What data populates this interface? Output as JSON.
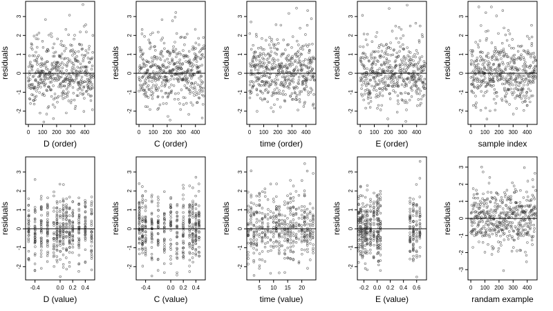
{
  "chart_data": [
    {
      "type": "scatter",
      "xlabel": "D (order)",
      "ylabel": "residuals",
      "x_ticks": [
        "0",
        "100",
        "200",
        "300",
        "400"
      ],
      "y_ticks": [
        "-2",
        "-1",
        "0",
        "1",
        "2",
        "3"
      ],
      "xlim": [
        -20,
        470
      ],
      "ylim": [
        -2.7,
        3.8
      ],
      "hline": 0,
      "x_domain": "order",
      "x_range": [
        0,
        460
      ],
      "seed": 11
    },
    {
      "type": "scatter",
      "xlabel": "C (order)",
      "ylabel": "residuals",
      "x_ticks": [
        "0",
        "100",
        "200",
        "300",
        "400"
      ],
      "y_ticks": [
        "-2",
        "-1",
        "0",
        "1",
        "2",
        "3"
      ],
      "xlim": [
        -20,
        470
      ],
      "ylim": [
        -2.7,
        3.8
      ],
      "hline": 0,
      "x_domain": "order",
      "x_range": [
        0,
        460
      ],
      "seed": 23
    },
    {
      "type": "scatter",
      "xlabel": "time (order)",
      "ylabel": "residuals",
      "x_ticks": [
        "0",
        "100",
        "200",
        "300",
        "400"
      ],
      "y_ticks": [
        "-2",
        "-1",
        "0",
        "1",
        "2",
        "3"
      ],
      "xlim": [
        -20,
        470
      ],
      "ylim": [
        -2.7,
        3.8
      ],
      "hline": 0,
      "x_domain": "order",
      "x_range": [
        0,
        460
      ],
      "seed": 37
    },
    {
      "type": "scatter",
      "xlabel": "E (order)",
      "ylabel": "residuals",
      "x_ticks": [
        "0",
        "100",
        "200",
        "300",
        "400"
      ],
      "y_ticks": [
        "-2",
        "-1",
        "0",
        "1",
        "2",
        "3"
      ],
      "xlim": [
        -20,
        470
      ],
      "ylim": [
        -2.7,
        3.8
      ],
      "hline": 0,
      "x_domain": "order",
      "x_range": [
        0,
        460
      ],
      "seed": 41
    },
    {
      "type": "scatter",
      "xlabel": "sample index",
      "ylabel": "residuals",
      "x_ticks": [
        "0",
        "100",
        "200",
        "300",
        "400"
      ],
      "y_ticks": [
        "-2",
        "-1",
        "0",
        "1",
        "2",
        "3"
      ],
      "xlim": [
        -20,
        470
      ],
      "ylim": [
        -2.7,
        3.8
      ],
      "hline": 0,
      "x_domain": "order",
      "x_range": [
        0,
        460
      ],
      "seed": 53
    },
    {
      "type": "scatter",
      "xlabel": "D (value)",
      "ylabel": "residuals",
      "x_ticks": [
        "-0.4",
        "0.0",
        "0.2",
        "0.4"
      ],
      "x_tick_values": [
        -0.4,
        0.0,
        0.2,
        0.4
      ],
      "y_ticks": [
        "-2",
        "-1",
        "0",
        "1",
        "2",
        "3"
      ],
      "xlim": [
        -0.55,
        0.55
      ],
      "ylim": [
        -2.7,
        3.8
      ],
      "hline": 0,
      "x_domain": "clusters",
      "x_clusters": [
        -0.5,
        -0.4,
        -0.3,
        -0.2,
        -0.1,
        -0.05,
        0.0,
        0.05,
        0.1,
        0.15,
        0.2,
        0.3,
        0.4,
        0.5
      ],
      "seed": 61
    },
    {
      "type": "scatter",
      "xlabel": "C (value)",
      "ylabel": "residuals",
      "x_ticks": [
        "-0.4",
        "0.0",
        "0.2",
        "0.4"
      ],
      "x_tick_values": [
        -0.4,
        0.0,
        0.2,
        0.4
      ],
      "y_ticks": [
        "-2",
        "-1",
        "0",
        "1",
        "2",
        "3"
      ],
      "xlim": [
        -0.55,
        0.55
      ],
      "ylim": [
        -2.7,
        3.8
      ],
      "hline": 0,
      "x_domain": "clusters",
      "x_clusters": [
        -0.5,
        -0.45,
        -0.4,
        -0.3,
        -0.2,
        -0.1,
        0.0,
        0.1,
        0.2,
        0.3,
        0.35,
        0.4,
        0.45
      ],
      "seed": 67
    },
    {
      "type": "scatter",
      "xlabel": "time (value)",
      "ylabel": "residuals",
      "x_ticks": [
        "5",
        "10",
        "15",
        "20"
      ],
      "x_tick_values": [
        5,
        10,
        15,
        20
      ],
      "y_ticks": [
        "-2",
        "-1",
        "0",
        "1",
        "2",
        "3"
      ],
      "xlim": [
        0.5,
        25
      ],
      "ylim": [
        -2.7,
        3.8
      ],
      "hline": 0,
      "x_domain": "clusters",
      "x_clusters": [
        1,
        2,
        3,
        4,
        5,
        6,
        7,
        8,
        9,
        10,
        11,
        12,
        13,
        14,
        15,
        16,
        17,
        18,
        19,
        20,
        21,
        22,
        23,
        24
      ],
      "seed": 71
    },
    {
      "type": "scatter",
      "xlabel": "E (value)",
      "ylabel": "residuals",
      "x_ticks": [
        "-0.2",
        "0.0",
        "0.2",
        "0.4",
        "0.6"
      ],
      "x_tick_values": [
        -0.2,
        0.0,
        0.2,
        0.4,
        0.6
      ],
      "y_ticks": [
        "-2",
        "-1",
        "0",
        "1",
        "2",
        "3"
      ],
      "xlim": [
        -0.3,
        0.75
      ],
      "ylim": [
        -2.7,
        3.8
      ],
      "hline": 0,
      "x_domain": "clusters",
      "x_clusters": [
        -0.28,
        -0.25,
        -0.22,
        -0.18,
        -0.15,
        -0.1,
        -0.05,
        0.0,
        0.02,
        0.05,
        0.5,
        0.55,
        0.6,
        0.65
      ],
      "seed": 79
    },
    {
      "type": "scatter",
      "xlabel": "randam example",
      "ylabel": "residuals",
      "x_ticks": [
        "0",
        "100",
        "200",
        "300",
        "400"
      ],
      "y_ticks": [
        "-3",
        "-2",
        "-1",
        "0",
        "1",
        "2",
        "3"
      ],
      "xlim": [
        -20,
        470
      ],
      "ylim": [
        -3.6,
        3.6
      ],
      "hline": 0,
      "x_domain": "order",
      "x_range": [
        0,
        460
      ],
      "seed": 89
    }
  ]
}
